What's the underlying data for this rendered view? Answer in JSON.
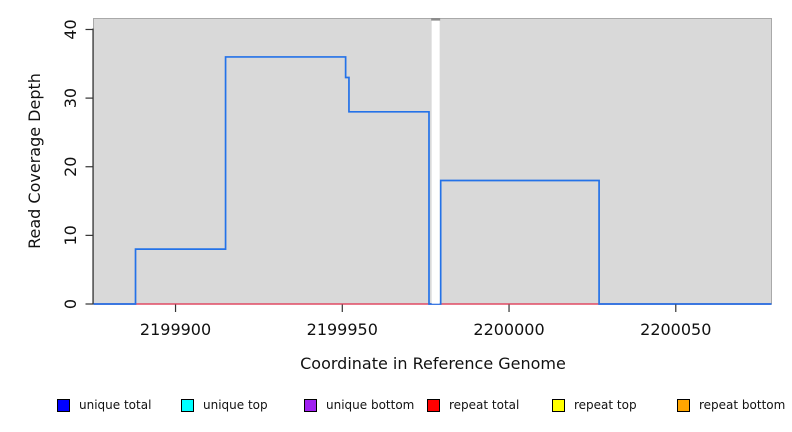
{
  "figure": {
    "x_axis_title": "Coordinate in Reference Genome",
    "y_axis_title": "Read Coverage Depth"
  },
  "chart_data": {
    "type": "line",
    "subtype": "step-coverage-plot",
    "title": "",
    "xlabel": "Coordinate in Reference Genome",
    "ylabel": "Read Coverage Depth",
    "xlim": [
      2199875.4,
      2200078.7
    ],
    "ylim": [
      0,
      41.6
    ],
    "x_ticks": [
      2199900,
      2199950,
      2200000,
      2200050
    ],
    "y_ticks": [
      0,
      10,
      20,
      30,
      40
    ],
    "grid": false,
    "plot_background": "#d9d9d9",
    "plot_edge_color": "#a9a9a9",
    "axis_color": "#333333",
    "masked_region": {
      "from": 2199976.8,
      "to": 2199979.2,
      "fill": "#ffffff",
      "top_mark_color": "#8c8c8c"
    },
    "series": [
      {
        "name": "unique total (coverage steps)",
        "line_color": "#2472e8",
        "segments": [
          [
            2199875.4,
            2199888,
            0
          ],
          [
            2199888,
            2199915,
            8
          ],
          [
            2199915,
            2199951,
            36
          ],
          [
            2199951,
            2199952,
            33
          ],
          [
            2199952,
            2199976,
            28
          ],
          [
            2199976,
            2199979.5,
            0
          ],
          [
            2199979.5,
            2200027,
            18
          ],
          [
            2200027,
            2200078.7,
            0
          ]
        ]
      },
      {
        "name": "repeat total (zero baseline)",
        "line_color": "#e04a64",
        "segments": [
          [
            2199875.4,
            2200078.7,
            0
          ]
        ]
      }
    ],
    "legend_position": "bottom",
    "legend": [
      {
        "label": "unique total",
        "color": "#0000ff"
      },
      {
        "label": "unique top",
        "color": "#00ffff"
      },
      {
        "label": "unique bottom",
        "color": "#a020f0"
      },
      {
        "label": "repeat total",
        "color": "#ff0000"
      },
      {
        "label": "repeat top",
        "color": "#ffff00"
      },
      {
        "label": "repeat bottom",
        "color": "#ffa500"
      }
    ]
  }
}
